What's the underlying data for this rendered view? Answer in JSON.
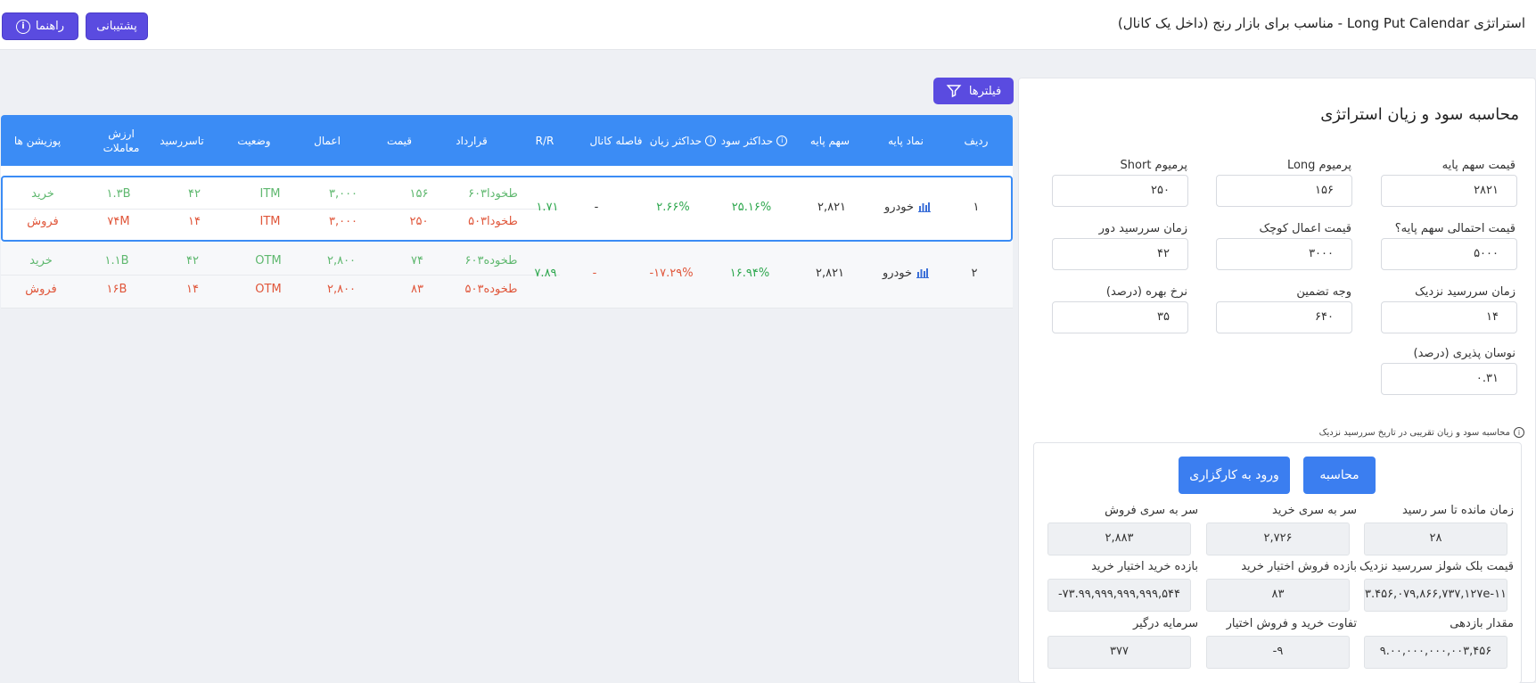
{
  "header": {
    "title": "استراتژی Long Put Calendar - مناسب برای بازار رنج (داخل یک کانال)",
    "support_label": "پشتیبانی",
    "guide_label": "راهنما"
  },
  "filter_label": "فیلترها",
  "table": {
    "headers": {
      "row": "ردیف",
      "symbol": "نماد پایه",
      "base": "سهم پایه",
      "max_profit": "حداکثر سود",
      "max_loss": "حداکثر زیان",
      "channel": "فاصله کانال",
      "rr": "R/R",
      "contract": "قرارداد",
      "price": "قیمت",
      "strike": "اعمال",
      "status": "وضعیت",
      "expiry": "تاسررسید",
      "value": "ارزش معاملات",
      "positions": "پوزیشن ها"
    },
    "rows": [
      {
        "index": "۱",
        "symbol": "خودرو",
        "base": "۲,۸۲۱",
        "max_profit": "۲۵.۱۶%",
        "max_loss": "۲.۶۶%",
        "channel": "-",
        "rr": "۱.۷۱",
        "legs": [
          {
            "contract": "طخودا۶۰۳",
            "price": "۱۵۶",
            "strike": "۳,۰۰۰",
            "status": "ITM",
            "expiry": "۴۲",
            "value": "۱.۳B",
            "position": "خرید"
          },
          {
            "contract": "طخودا۵۰۳",
            "price": "۲۵۰",
            "strike": "۳,۰۰۰",
            "status": "ITM",
            "expiry": "۱۴",
            "value": "۷۴M",
            "position": "فروش"
          }
        ]
      },
      {
        "index": "۲",
        "symbol": "خودرو",
        "base": "۲,۸۲۱",
        "max_profit": "۱۶.۹۴%",
        "max_loss": "-۱۷.۲۹%",
        "channel": "-",
        "rr": "۷.۸۹",
        "legs": [
          {
            "contract": "طخوده۶۰۳",
            "price": "۷۴",
            "strike": "۲,۸۰۰",
            "status": "OTM",
            "expiry": "۴۲",
            "value": "۱.۱B",
            "position": "خرید"
          },
          {
            "contract": "طخوده۵۰۳",
            "price": "۸۳",
            "strike": "۲,۸۰۰",
            "status": "OTM",
            "expiry": "۱۴",
            "value": "۱۶B",
            "position": "فروش"
          }
        ]
      }
    ]
  },
  "panel": {
    "title": "محاسبه سود و زیان استراتژی",
    "fields": {
      "base_price": {
        "label": "قیمت سهم پایه",
        "value": "۲۸۲۱"
      },
      "long_premium": {
        "label": "پرمیوم Long",
        "value": "۱۵۶"
      },
      "short_premium": {
        "label": "پرمیوم Short",
        "value": "۲۵۰"
      },
      "prob_price": {
        "label": "قیمت احتمالی سهم پایه؟",
        "value": "۵۰۰۰"
      },
      "small_strike": {
        "label": "قیمت اعمال کوچک",
        "value": "۳۰۰۰"
      },
      "far_expiry": {
        "label": "زمان سررسید دور",
        "value": "۴۲"
      },
      "near_expiry": {
        "label": "زمان سررسید نزدیک",
        "value": "۱۴"
      },
      "margin": {
        "label": "وجه تضمین",
        "value": "۶۴۰"
      },
      "interest": {
        "label": "نرخ بهره (درصد)",
        "value": "۳۵"
      },
      "volatility": {
        "label": "نوسان پذیری (درصد)",
        "value": "۰.۳۱"
      }
    },
    "note": "محاسبه سود و زیان تقریبی در تاریخ سررسید نزدیک",
    "calc_label": "محاسبه",
    "broker_label": "ورود به کارگزاری",
    "outputs": {
      "time_left": {
        "label": "زمان مانده تا سر رسید",
        "value": "۲۸"
      },
      "be_buy": {
        "label": "سر به سری خرید",
        "value": "۲,۷۲۶"
      },
      "be_sell": {
        "label": "سر به سری فروش",
        "value": "۲,۸۸۳"
      },
      "bs_price": {
        "label": "قیمت بلک شولز سررسید نزدیک",
        "value": "۳.۴۵۶,۰۷۹,۸۶۶,۷۳۷,۱۲۷e-۱۱"
      },
      "put_sell_return": {
        "label": "بازده فروش اختیار خرید",
        "value": "۸۳"
      },
      "put_buy_return": {
        "label": "بازده خرید اختیار خرید",
        "value": "-۷۳.۹۹,۹۹۹,۹۹۹,۹۹۹,۵۴۴"
      },
      "return_amount": {
        "label": "مقدار بازدهی",
        "value": "۹.۰۰,۰۰۰,۰۰۰,۰۰۳,۴۵۶"
      },
      "diff": {
        "label": "تفاوت خرید و فروش اختیار",
        "value": "-۹"
      },
      "capital": {
        "label": "سرمایه درگیر",
        "value": "۳۷۷"
      }
    }
  }
}
